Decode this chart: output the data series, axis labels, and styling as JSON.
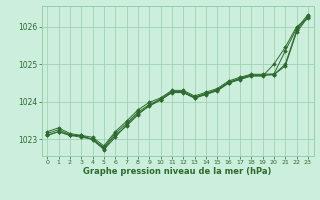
{
  "background_color": "#cceedd",
  "grid_color": "#99ccaa",
  "line_color": "#2d6a2d",
  "marker_color": "#2d6a2d",
  "title": "Graphe pression niveau de la mer (hPa)",
  "xlim": [
    -0.5,
    23.5
  ],
  "ylim": [
    1022.55,
    1026.55
  ],
  "yticks": [
    1023,
    1024,
    1025,
    1026
  ],
  "xticks": [
    0,
    1,
    2,
    3,
    4,
    5,
    6,
    7,
    8,
    9,
    10,
    11,
    12,
    13,
    14,
    15,
    16,
    17,
    18,
    19,
    20,
    21,
    22,
    23
  ],
  "series": [
    [
      1023.1,
      1023.2,
      1023.1,
      1023.05,
      1023.0,
      1022.75,
      1023.1,
      1023.35,
      1023.65,
      1023.9,
      1024.05,
      1024.25,
      1024.25,
      1024.1,
      1024.2,
      1024.3,
      1024.5,
      1024.6,
      1024.7,
      1024.7,
      1024.72,
      1024.95,
      1025.85,
      1026.25
    ],
    [
      1023.15,
      1023.25,
      1023.12,
      1023.08,
      1023.0,
      1022.78,
      1023.15,
      1023.42,
      1023.72,
      1023.92,
      1024.07,
      1024.27,
      1024.27,
      1024.12,
      1024.22,
      1024.32,
      1024.52,
      1024.62,
      1024.71,
      1024.71,
      1024.72,
      1025.0,
      1025.9,
      1026.28
    ],
    [
      1023.2,
      1023.3,
      1023.15,
      1023.1,
      1023.05,
      1022.82,
      1023.2,
      1023.48,
      1023.78,
      1023.98,
      1024.1,
      1024.3,
      1024.3,
      1024.15,
      1024.25,
      1024.35,
      1024.55,
      1024.65,
      1024.73,
      1024.73,
      1024.74,
      1025.35,
      1025.95,
      1026.32
    ],
    [
      1023.1,
      1023.2,
      1023.1,
      1023.1,
      1022.98,
      1022.72,
      1023.05,
      1023.38,
      1023.68,
      1023.88,
      1024.04,
      1024.24,
      1024.24,
      1024.09,
      1024.19,
      1024.29,
      1024.49,
      1024.59,
      1024.68,
      1024.68,
      1025.0,
      1025.45,
      1026.0,
      1026.22
    ]
  ]
}
